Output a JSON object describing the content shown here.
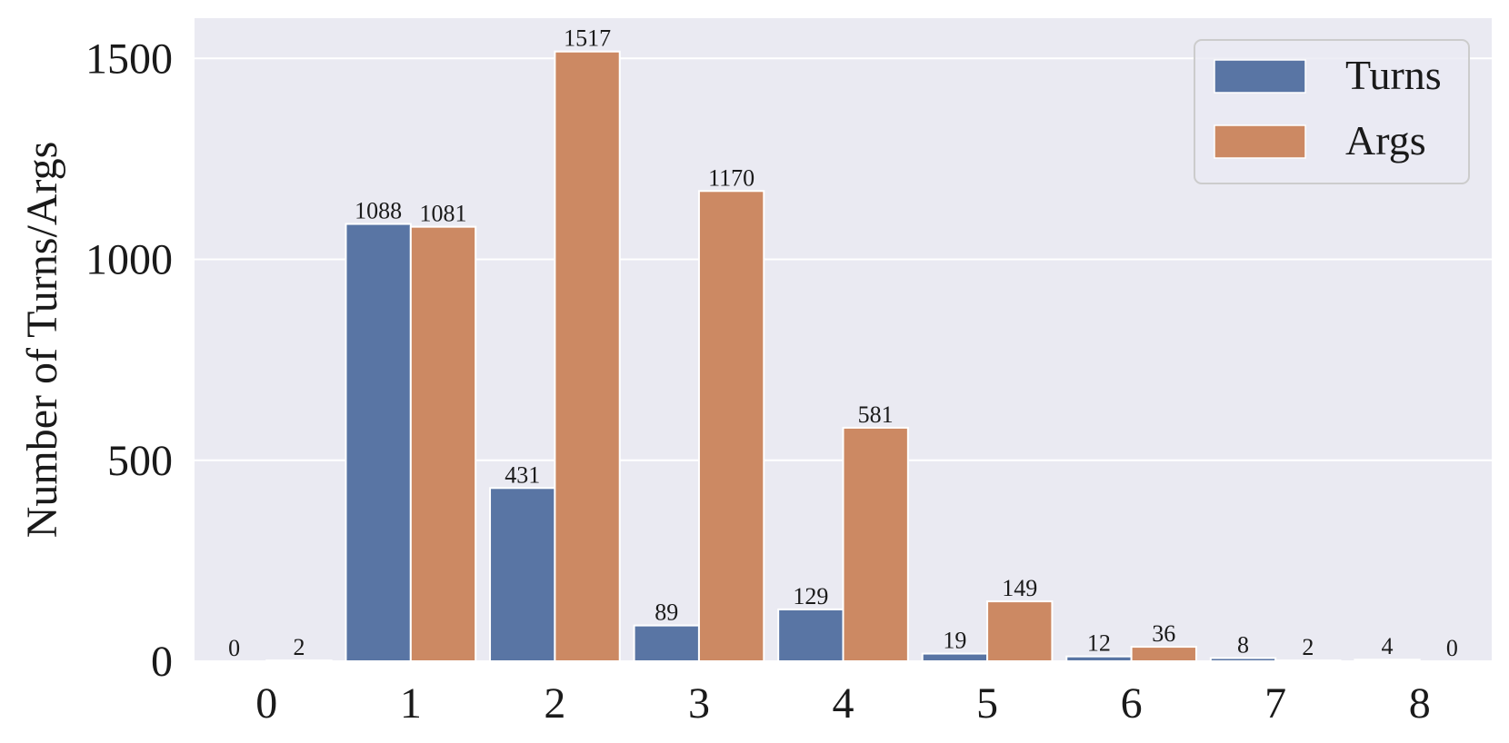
{
  "chart_data": {
    "type": "bar",
    "categories": [
      "0",
      "1",
      "2",
      "3",
      "4",
      "5",
      "6",
      "7",
      "8"
    ],
    "series": [
      {
        "name": "Turns",
        "color": "#5975a4",
        "values": [
          0,
          1088,
          431,
          89,
          129,
          19,
          12,
          8,
          4
        ]
      },
      {
        "name": "Args",
        "color": "#cc8963",
        "values": [
          2,
          1081,
          1517,
          1170,
          581,
          149,
          36,
          2,
          0
        ]
      }
    ],
    "xlabel": "",
    "ylabel": "Number of Turns/Args",
    "ylim": [
      0,
      1600
    ],
    "yticks": [
      0,
      500,
      1000,
      1500
    ],
    "grid": true,
    "legend_position": "top-right",
    "background_color": "#eaeaf2",
    "grid_color": "#ffffff"
  }
}
